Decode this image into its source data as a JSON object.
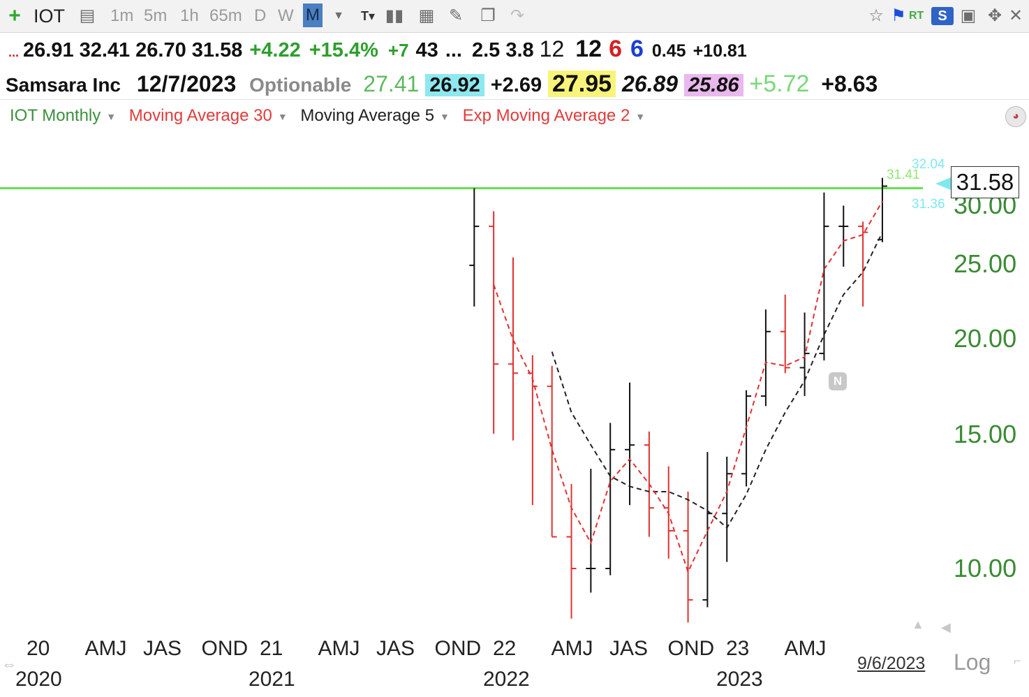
{
  "toolbar": {
    "symbol": "IOT",
    "timeframes": [
      "1m",
      "5m",
      "1h",
      "65m",
      "D",
      "W",
      "M"
    ],
    "active_timeframe": "M",
    "right_badges": [
      "RT",
      "S"
    ]
  },
  "quote_row1": [
    {
      "text": "...",
      "color": "#d62020"
    },
    {
      "text": "26.91",
      "color": "#111111"
    },
    {
      "text": "32.41",
      "color": "#111111"
    },
    {
      "text": "26.70",
      "color": "#111111"
    },
    {
      "text": "31.58",
      "color": "#111111"
    },
    {
      "text": "+4.22",
      "color": "#2e9e2e"
    },
    {
      "text": "+15.4%",
      "color": "#2e9e2e"
    },
    {
      "text": "+7",
      "color": "#2e9e2e"
    },
    {
      "text": "43",
      "color": "#111111"
    },
    {
      "text": "...",
      "color": "#111111"
    },
    {
      "text": "2.5",
      "color": "#111111"
    },
    {
      "text": "3.8",
      "color": "#111111"
    },
    {
      "text": "12",
      "color": "#111111"
    },
    {
      "text": "12",
      "color": "#111111"
    },
    {
      "text": "6",
      "color": "#d62020"
    },
    {
      "text": "6",
      "color": "#1a3fd6"
    },
    {
      "text": "0.45",
      "color": "#111111"
    },
    {
      "text": "+10.81",
      "color": "#111111"
    }
  ],
  "quote_row2": {
    "company": "Samsara Inc",
    "date": "12/7/2023",
    "optionable": "Optionable",
    "v1": "27.41",
    "v2": "26.92",
    "v3": "+2.69",
    "v4": "27.95",
    "v5": "26.89",
    "v6": "25.86",
    "v7": "+5.72",
    "v8": "+8.63"
  },
  "studies": [
    {
      "label": "IOT Monthly",
      "color": "#3d8f3d"
    },
    {
      "label": "Moving Average 30",
      "color": "#e23b3b"
    },
    {
      "label": "Moving Average 5",
      "color": "#222222"
    },
    {
      "label": "Exp Moving Average 2",
      "color": "#e23b3b"
    }
  ],
  "price_tags": {
    "last": "31.58",
    "high": "32.04",
    "ma30": "31.41",
    "low": "31.36"
  },
  "bottom": {
    "date_label": "9/6/2023",
    "scale_label": "Log",
    "news_marker": "N"
  },
  "colors": {
    "up": "#111111",
    "down": "#e03030",
    "axis_text": "#3b8a35",
    "hline": "#66e050",
    "cyan": "#7fe8f0"
  },
  "chart_data": {
    "type": "ohlc",
    "title": "IOT Monthly",
    "ylim": [
      8.5,
      34.5
    ],
    "yscale": "log",
    "y_ticks": [
      "10.00",
      "15.00",
      "20.00",
      "25.00",
      "30.00"
    ],
    "x_quarter_labels": [
      "20",
      "AMJ",
      "JAS",
      "OND",
      "21",
      "AMJ",
      "JAS",
      "OND",
      "22",
      "AMJ",
      "JAS",
      "OND",
      "23",
      "AMJ"
    ],
    "x_year_labels": [
      "2020",
      "2021",
      "2022",
      "2023"
    ],
    "resistance_line": 31.4,
    "series": [
      {
        "name": "IOT Monthly",
        "ohlc": [
          [
            "2021-12",
            24.9,
            31.4,
            22.0,
            28.0
          ],
          [
            "2022-01",
            28.0,
            29.3,
            15.0,
            18.5
          ],
          [
            "2022-02",
            18.5,
            25.5,
            14.7,
            18.0
          ],
          [
            "2022-03",
            18.0,
            19.0,
            12.1,
            17.3
          ],
          [
            "2022-04",
            17.3,
            18.4,
            11.0,
            11.0
          ],
          [
            "2022-05",
            11.0,
            12.9,
            8.6,
            10.0
          ],
          [
            "2022-06",
            10.0,
            13.5,
            9.3,
            10.0
          ],
          [
            "2022-07",
            10.0,
            15.5,
            9.8,
            14.3
          ],
          [
            "2022-08",
            14.3,
            17.5,
            12.1,
            14.5
          ],
          [
            "2022-09",
            14.5,
            15.1,
            11.0,
            12.0
          ],
          [
            "2022-10",
            12.0,
            13.6,
            10.3,
            11.2
          ],
          [
            "2022-11",
            11.2,
            12.6,
            8.5,
            9.1
          ],
          [
            "2022-12",
            9.1,
            14.2,
            8.9,
            11.8
          ],
          [
            "2023-01",
            11.8,
            14.0,
            10.2,
            13.3
          ],
          [
            "2023-02",
            13.3,
            17.1,
            12.8,
            16.8
          ],
          [
            "2023-03",
            16.8,
            21.8,
            16.3,
            20.4
          ],
          [
            "2023-04",
            20.4,
            22.8,
            18.0,
            18.3
          ],
          [
            "2023-05",
            18.3,
            21.6,
            16.8,
            19.1
          ],
          [
            "2023-06",
            19.1,
            31.0,
            18.7,
            28.0
          ],
          [
            "2023-07",
            28.0,
            29.8,
            24.8,
            28.0
          ],
          [
            "2023-08",
            28.0,
            28.4,
            22.0,
            27.5
          ],
          [
            "2023-09",
            26.9,
            32.4,
            26.7,
            31.6
          ]
        ]
      },
      {
        "name": "Moving Average 5",
        "values": [
          null,
          null,
          null,
          null,
          19.2,
          16.0,
          14.5,
          13.2,
          12.8,
          12.6,
          12.6,
          12.3,
          11.9,
          11.3,
          12.5,
          14.3,
          16.0,
          17.6,
          20.2,
          22.8,
          24.4,
          27.5
        ]
      },
      {
        "name": "Exp Moving Average 2",
        "values": [
          null,
          23.5,
          19.9,
          17.7,
          14.3,
          12.0,
          10.8,
          13.0,
          13.9,
          12.9,
          11.8,
          9.9,
          11.2,
          12.6,
          15.3,
          18.6,
          18.4,
          18.9,
          24.6,
          26.8,
          27.3,
          30.2
        ]
      }
    ]
  }
}
